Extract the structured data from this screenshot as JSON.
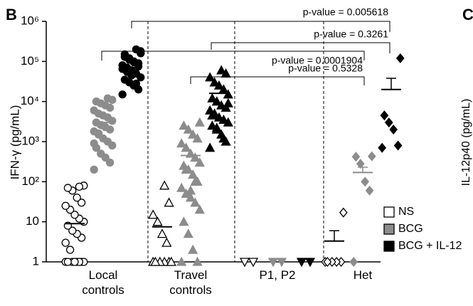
{
  "chart_data": {
    "type": "dot-plot",
    "panel_label": "B",
    "next_panel_label": "C",
    "next_panel_y_label": "IL-12p40 (pg/mL)",
    "y_label": "IFN-γ (pg/mL)",
    "y_log": true,
    "ylim": [
      1,
      1000000
    ],
    "yticks": [
      1,
      10,
      {
        "value": 100,
        "label": "10²"
      },
      {
        "value": 1000,
        "label": "10³"
      },
      {
        "value": 10000,
        "label": "10⁴"
      },
      {
        "value": 100000,
        "label": "10⁵"
      },
      {
        "value": 1000000,
        "label": "10⁶"
      }
    ],
    "groups": [
      {
        "label": "Local\ncontrols",
        "color": "#000000",
        "marker": "circle"
      },
      {
        "label": "Travel\ncontrols",
        "color": "#000000",
        "marker": "triangle"
      },
      {
        "label": "P1, P2",
        "color": "#e8201c",
        "marker": "triangle-down"
      },
      {
        "label": "Het",
        "color": "#000000",
        "marker": "diamond"
      }
    ],
    "series": [
      {
        "name": "NS",
        "color": "#ffffff",
        "stroke": "#000000",
        "values": [
          [
            1,
            1,
            1,
            1,
            1,
            1,
            1,
            1,
            2,
            3,
            4,
            5,
            6,
            8,
            10,
            12,
            15,
            20,
            25,
            30,
            40,
            60,
            70,
            80,
            75
          ],
          [
            1,
            1,
            1,
            1,
            1,
            1,
            3,
            5,
            10,
            15,
            30,
            80
          ],
          [
            1,
            1
          ],
          [
            1,
            1,
            1,
            1,
            1,
            17
          ]
        ],
        "means": [
          9,
          7.5,
          null,
          3.3
        ],
        "errors": [
          null,
          null,
          null,
          2.7
        ]
      },
      {
        "name": "BCG",
        "color": "#8c8c8c",
        "stroke": "#8c8c8c",
        "values": [
          [
            200,
            300,
            400,
            500,
            700,
            800,
            1000,
            1200,
            1500,
            1800,
            2000,
            2300,
            2600,
            3000,
            3300,
            4000,
            4500,
            5000,
            6000,
            7000,
            8000,
            9000,
            10000,
            11000,
            12000,
            2500,
            1600,
            900
          ],
          [
            1,
            1,
            2,
            5,
            10,
            20,
            30,
            40,
            50,
            70,
            100,
            150,
            200,
            250,
            300,
            400,
            500,
            700,
            900,
            1200,
            1500,
            2000,
            2500,
            3000,
            100,
            60,
            200
          ],
          [
            1,
            1
          ],
          [
            1,
            60,
            100,
            280,
            420,
            430
          ]
        ],
        "means": [
          3000,
          450,
          null,
          170
        ],
        "errors": [
          null,
          null,
          null,
          60
        ]
      },
      {
        "name": "BCG + IL-12",
        "color": "#000000",
        "stroke": "#000000",
        "values": [
          [
            15000,
            20000,
            25000,
            30000,
            35000,
            40000,
            50000,
            60000,
            70000,
            80000,
            90000,
            100000,
            120000,
            150000,
            180000,
            200000,
            45000,
            55000,
            65000,
            75000,
            95000,
            110000,
            130000,
            160000,
            28000
          ],
          [
            700,
            1000,
            1500,
            2000,
            2500,
            3000,
            3500,
            4000,
            5000,
            6000,
            7000,
            8000,
            10000,
            12000,
            15000,
            20000,
            25000,
            30000,
            40000,
            50000,
            60000,
            2200,
            4500,
            9000,
            1200
          ],
          [
            1,
            1
          ],
          [
            700,
            800,
            2000,
            3000,
            4500,
            120000
          ]
        ],
        "means": [
          70000,
          16000,
          null,
          20000
        ],
        "errors": [
          null,
          null,
          null,
          18000
        ]
      }
    ],
    "annotations": [
      "p-value = 0.005618",
      "p-value = 0.3261",
      "p-value = 0.0001904",
      "p-value = 0.5328"
    ]
  }
}
